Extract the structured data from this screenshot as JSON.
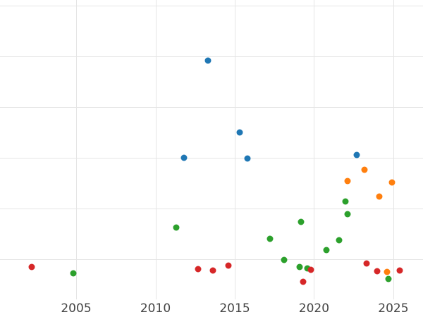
{
  "chart_data": {
    "type": "scatter",
    "title": "",
    "xlabel": "",
    "ylabel": "",
    "xlim": [
      2000.2,
      2026.87
    ],
    "ylim": [
      0.21,
      6.11
    ],
    "x_ticks": [
      2005,
      2010,
      2015,
      2020,
      2025
    ],
    "x_tick_labels": [
      "2005",
      "2010",
      "2015",
      "2020",
      "2025"
    ],
    "y_gridline_values": [
      1,
      2,
      3,
      4,
      5,
      6
    ],
    "grid": true,
    "legend_position": "none",
    "note": "y-axis has no visible labels; y values estimated from unlabeled horizontal gridlines indexed 1-6 from bottom",
    "series": [
      {
        "name": "blue",
        "color": "#1f77b4",
        "points": [
          [
            2011.8,
            3.0
          ],
          [
            2013.3,
            4.92
          ],
          [
            2015.3,
            3.5
          ],
          [
            2015.8,
            2.99
          ],
          [
            2022.7,
            3.06
          ]
        ]
      },
      {
        "name": "orange",
        "color": "#ff7f0e",
        "points": [
          [
            2022.1,
            2.54
          ],
          [
            2023.2,
            2.76
          ],
          [
            2024.1,
            2.24
          ],
          [
            2024.6,
            0.75
          ],
          [
            2024.9,
            2.51
          ]
        ]
      },
      {
        "name": "green",
        "color": "#2ca02c",
        "points": [
          [
            2004.8,
            0.72
          ],
          [
            2011.3,
            1.63
          ],
          [
            2017.2,
            1.4
          ],
          [
            2018.1,
            0.99
          ],
          [
            2019.1,
            0.85
          ],
          [
            2019.2,
            1.74
          ],
          [
            2019.6,
            0.82
          ],
          [
            2020.8,
            1.18
          ],
          [
            2021.6,
            1.38
          ],
          [
            2022.0,
            2.14
          ],
          [
            2022.1,
            1.89
          ],
          [
            2024.7,
            0.61
          ]
        ]
      },
      {
        "name": "red",
        "color": "#d62728",
        "points": [
          [
            2002.2,
            0.85
          ],
          [
            2012.7,
            0.81
          ],
          [
            2013.6,
            0.78
          ],
          [
            2014.6,
            0.88
          ],
          [
            2019.3,
            0.56
          ],
          [
            2019.8,
            0.79
          ],
          [
            2023.3,
            0.92
          ],
          [
            2024.0,
            0.76
          ],
          [
            2025.4,
            0.78
          ]
        ]
      }
    ]
  }
}
